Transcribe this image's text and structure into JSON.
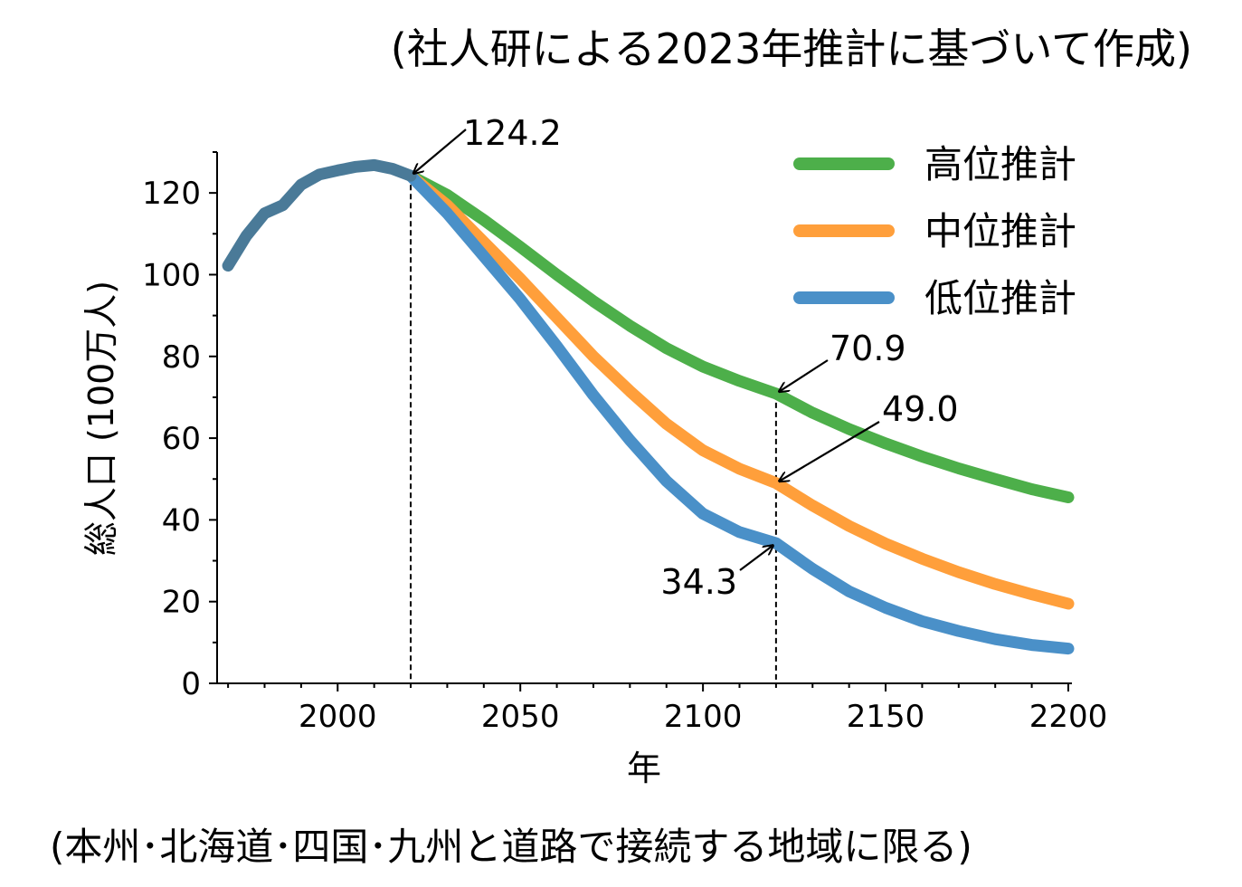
{
  "page": {
    "title": "(社人研による2023年推計に基づいて作成)",
    "footnote": "(本州･北海道･四国･九州と道路で接続する地域に限る)"
  },
  "chart_data": {
    "type": "line",
    "xlabel": "年",
    "ylabel": "総人口 (100万人)",
    "xlim": [
      1967,
      2201
    ],
    "ylim": [
      0,
      130
    ],
    "xticks": [
      "2000",
      "2050",
      "2100",
      "2150",
      "2200"
    ],
    "yticks": [
      "0",
      "20",
      "40",
      "60",
      "80",
      "100",
      "120"
    ],
    "grid": false,
    "legend_position": "top-right",
    "series": [
      {
        "name": "高位推計",
        "color": "#4daf4a",
        "x": [
          2020,
          2030,
          2040,
          2050,
          2060,
          2070,
          2080,
          2090,
          2100,
          2110,
          2120,
          2130,
          2140,
          2150,
          2160,
          2170,
          2180,
          2190,
          2200
        ],
        "y": [
          124.2,
          119.5,
          113.4,
          106.8,
          100.0,
          93.5,
          87.5,
          82.0,
          77.5,
          74.0,
          70.9,
          66.2,
          62.2,
          58.7,
          55.5,
          52.6,
          50.0,
          47.5,
          45.5
        ]
      },
      {
        "name": "中位推計",
        "color": "#ff9f3b",
        "x": [
          2020,
          2030,
          2040,
          2050,
          2060,
          2070,
          2080,
          2090,
          2100,
          2110,
          2120,
          2130,
          2140,
          2150,
          2160,
          2170,
          2180,
          2190,
          2200
        ],
        "y": [
          124.2,
          117.0,
          108.0,
          99.0,
          89.5,
          80.0,
          71.5,
          63.5,
          57.0,
          52.5,
          49.0,
          43.5,
          38.5,
          34.2,
          30.5,
          27.2,
          24.3,
          21.8,
          19.5
        ]
      },
      {
        "name": "低位推計",
        "color": "#4a90c8",
        "x": [
          2020,
          2030,
          2040,
          2050,
          2060,
          2070,
          2080,
          2090,
          2100,
          2110,
          2120,
          2130,
          2140,
          2150,
          2160,
          2170,
          2180,
          2190,
          2200
        ],
        "y": [
          124.2,
          115.0,
          104.5,
          94.0,
          82.5,
          70.5,
          59.5,
          49.5,
          41.5,
          37.0,
          34.3,
          28.0,
          22.5,
          18.5,
          15.2,
          12.8,
          10.8,
          9.4,
          8.5
        ]
      },
      {
        "name": "",
        "color": "#4a7a98",
        "x": [
          1970,
          1975,
          1980,
          1985,
          1990,
          1995,
          2000,
          2005,
          2010,
          2015,
          2020
        ],
        "y": [
          102.2,
          109.5,
          115.0,
          117.0,
          122.0,
          124.5,
          125.5,
          126.4,
          126.8,
          125.9,
          124.2
        ]
      }
    ],
    "reference_lines_x": [
      2020,
      2120
    ],
    "annotations": [
      {
        "text": "124.2",
        "x": 2020,
        "y": 124.2
      },
      {
        "text": "70.9",
        "x": 2120,
        "y": 70.9
      },
      {
        "text": "49.0",
        "x": 2120,
        "y": 49.0
      },
      {
        "text": "34.3",
        "x": 2120,
        "y": 34.3
      }
    ]
  }
}
